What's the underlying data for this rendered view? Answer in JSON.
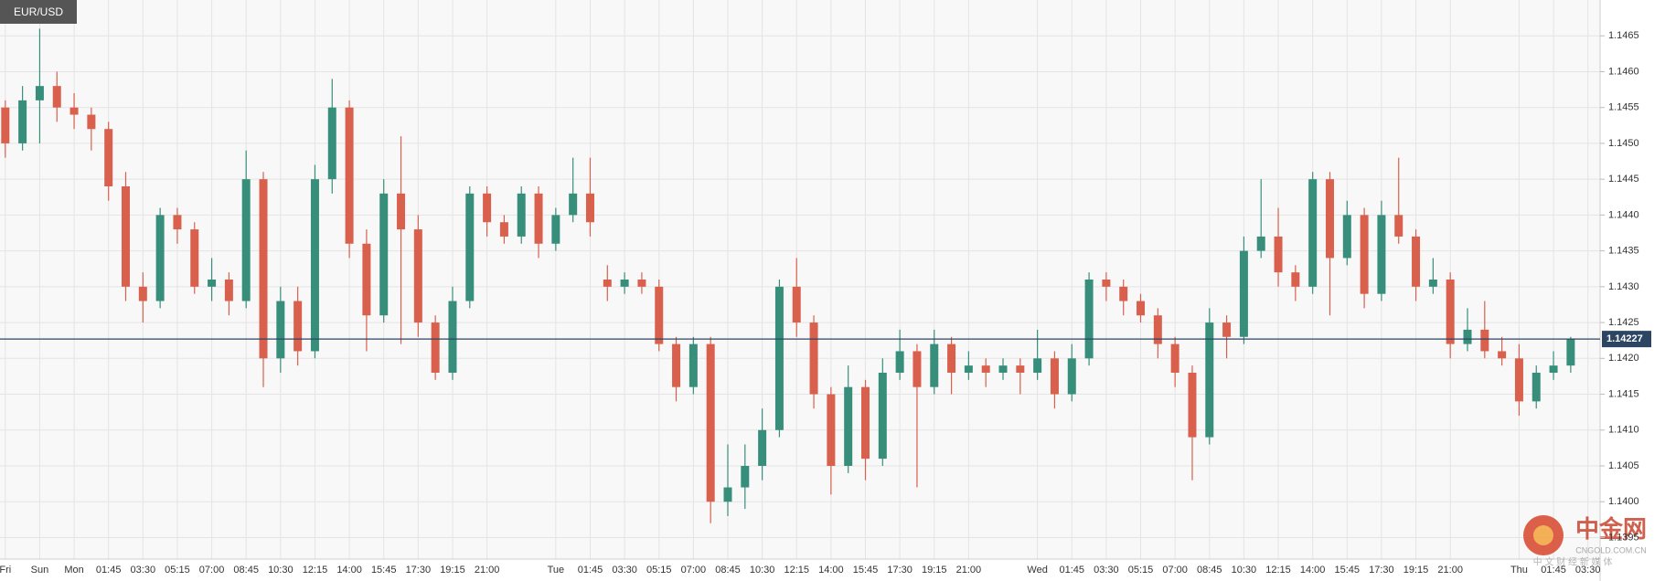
{
  "chart_data": {
    "type": "candlestick",
    "title": "EUR/USD",
    "categories": [
      "Fri",
      null,
      "Sun",
      null,
      "Mon",
      null,
      "01:45",
      null,
      "03:30",
      null,
      "05:15",
      null,
      "07:00",
      null,
      "08:45",
      null,
      "10:30",
      null,
      "12:15",
      null,
      "14:00",
      null,
      "15:45",
      null,
      "17:30",
      null,
      "19:15",
      null,
      "21:00",
      null,
      null,
      null,
      "Tue",
      null,
      "01:45",
      null,
      "03:30",
      null,
      "05:15",
      null,
      "07:00",
      null,
      "08:45",
      null,
      "10:30",
      null,
      "12:15",
      null,
      "14:00",
      null,
      "15:45",
      null,
      "17:30",
      null,
      "19:15",
      null,
      "21:00",
      null,
      null,
      null,
      "Wed",
      null,
      "01:45",
      null,
      "03:30",
      null,
      "05:15",
      null,
      "07:00",
      null,
      "08:45",
      null,
      "10:30",
      null,
      "12:15",
      null,
      "14:00",
      null,
      "15:45",
      null,
      "17:30",
      null,
      "19:15",
      null,
      "21:00",
      null,
      null,
      null,
      "Thu",
      null,
      "01:45",
      null,
      "03:30"
    ],
    "open": [
      1.1455,
      1.145,
      1.1456,
      1.1458,
      1.1455,
      1.1454,
      1.1452,
      1.1444,
      1.143,
      1.1428,
      1.144,
      1.1438,
      1.143,
      1.1431,
      1.1428,
      1.1445,
      1.142,
      1.1428,
      1.1421,
      1.1445,
      1.1455,
      1.1436,
      1.1426,
      1.1443,
      1.1438,
      1.1425,
      1.1418,
      1.1428,
      1.1443,
      1.1439,
      1.1437,
      1.1443,
      1.1436,
      1.144,
      1.1443,
      1.1431,
      1.143,
      1.1431,
      1.143,
      1.1422,
      1.1416,
      1.1422,
      1.14,
      1.1402,
      1.1405,
      1.141,
      1.143,
      1.1425,
      1.1415,
      1.1405,
      1.1416,
      1.1406,
      1.1418,
      1.1421,
      1.1416,
      1.1422,
      1.1418,
      1.1419,
      1.1418,
      1.1419,
      1.1418,
      1.142,
      1.1415,
      1.142,
      1.1431,
      1.143,
      1.1428,
      1.1426,
      1.1422,
      1.1418,
      1.1409,
      1.1425,
      1.1423,
      1.1435,
      1.1437,
      1.1432,
      1.143,
      1.1445,
      1.1434,
      1.144,
      1.1429,
      1.144,
      1.1437,
      1.143,
      1.1431,
      1.1422,
      1.1424,
      1.1421,
      1.142,
      1.1414,
      1.1418,
      1.1419,
      null
    ],
    "high": [
      1.1456,
      1.1458,
      1.1466,
      1.146,
      1.1457,
      1.1455,
      1.1453,
      1.1446,
      1.1432,
      1.1441,
      1.1441,
      1.1439,
      1.1434,
      1.1432,
      1.1449,
      1.1446,
      1.143,
      1.143,
      1.1447,
      1.1459,
      1.1456,
      1.1438,
      1.1445,
      1.1451,
      1.144,
      1.1426,
      1.143,
      1.1444,
      1.1444,
      1.144,
      1.1444,
      1.1444,
      1.1441,
      1.1448,
      1.1448,
      1.1433,
      1.1432,
      1.1432,
      1.1431,
      1.1423,
      1.1423,
      1.1423,
      1.1408,
      1.1408,
      1.1413,
      1.1431,
      1.1434,
      1.1426,
      1.1416,
      1.1419,
      1.1417,
      1.142,
      1.1424,
      1.1422,
      1.1424,
      1.1423,
      1.1421,
      1.142,
      1.142,
      1.142,
      1.1424,
      1.1421,
      1.1422,
      1.1432,
      1.1432,
      1.1431,
      1.1429,
      1.1427,
      1.1423,
      1.1419,
      1.1427,
      1.1426,
      1.1437,
      1.1445,
      1.1441,
      1.1433,
      1.1446,
      1.1446,
      1.1442,
      1.1441,
      1.1442,
      1.1448,
      1.1438,
      1.1434,
      1.1432,
      1.1427,
      1.1428,
      1.1423,
      1.1422,
      1.1419,
      1.1421,
      1.1423,
      null
    ],
    "low": [
      1.1448,
      1.1449,
      1.145,
      1.1453,
      1.1452,
      1.1449,
      1.1442,
      1.1428,
      1.1425,
      1.1427,
      1.1436,
      1.1429,
      1.1428,
      1.1426,
      1.1427,
      1.1416,
      1.1418,
      1.1419,
      1.142,
      1.1443,
      1.1434,
      1.1421,
      1.1425,
      1.1422,
      1.1423,
      1.1417,
      1.1417,
      1.1427,
      1.1437,
      1.1436,
      1.1436,
      1.1434,
      1.1435,
      1.1439,
      1.1437,
      1.1428,
      1.1429,
      1.1429,
      1.1421,
      1.1414,
      1.1415,
      1.1397,
      1.1398,
      1.1399,
      1.1403,
      1.1409,
      1.1423,
      1.1413,
      1.1401,
      1.1404,
      1.1403,
      1.1405,
      1.1417,
      1.1402,
      1.1415,
      1.1415,
      1.1417,
      1.1416,
      1.1417,
      1.1415,
      1.1417,
      1.1413,
      1.1414,
      1.1419,
      1.1428,
      1.1426,
      1.1425,
      1.142,
      1.1416,
      1.1403,
      1.1408,
      1.142,
      1.1422,
      1.1434,
      1.143,
      1.1428,
      1.1429,
      1.1426,
      1.1433,
      1.1427,
      1.1428,
      1.1436,
      1.1428,
      1.1429,
      1.142,
      1.1421,
      1.142,
      1.1419,
      1.1412,
      1.1413,
      1.1417,
      1.1418,
      null
    ],
    "close": [
      1.145,
      1.1456,
      1.1458,
      1.1455,
      1.1454,
      1.1452,
      1.1444,
      1.143,
      1.1428,
      1.144,
      1.1438,
      1.143,
      1.1431,
      1.1428,
      1.1445,
      1.142,
      1.1428,
      1.1421,
      1.1445,
      1.1455,
      1.1436,
      1.1426,
      1.1443,
      1.1438,
      1.1425,
      1.1418,
      1.1428,
      1.1443,
      1.1439,
      1.1437,
      1.1443,
      1.1436,
      1.144,
      1.1443,
      1.1439,
      1.143,
      1.1431,
      1.143,
      1.1422,
      1.1416,
      1.1422,
      1.14,
      1.1402,
      1.1405,
      1.141,
      1.143,
      1.1425,
      1.1415,
      1.1405,
      1.1416,
      1.1406,
      1.1418,
      1.1421,
      1.1416,
      1.1422,
      1.1418,
      1.1419,
      1.1418,
      1.1419,
      1.1418,
      1.142,
      1.1415,
      1.142,
      1.1431,
      1.143,
      1.1428,
      1.1426,
      1.1422,
      1.1418,
      1.1409,
      1.1425,
      1.1423,
      1.1435,
      1.1437,
      1.1432,
      1.143,
      1.1445,
      1.1434,
      1.144,
      1.1429,
      1.144,
      1.1437,
      1.143,
      1.1431,
      1.1422,
      1.1424,
      1.1421,
      1.142,
      1.1414,
      1.1418,
      1.1419,
      1.14227,
      null
    ],
    "up_color": "#378f7b",
    "down_color": "#d9604c",
    "last_price": 1.14227,
    "last_price_color": "#2c4563",
    "ylim": [
      1.1392,
      1.147
    ],
    "yticks": [
      1.1395,
      {
        "value": 1.14,
        "label": "1.1400"
      },
      1.1405,
      {
        "value": 1.141,
        "label": "1.1410"
      },
      1.1415,
      {
        "value": 1.142,
        "label": "1.1420"
      },
      1.1425,
      {
        "value": 1.143,
        "label": "1.1430"
      },
      1.1435,
      {
        "value": 1.144,
        "label": "1.1440"
      },
      1.1445,
      {
        "value": 1.145,
        "label": "1.1450"
      },
      1.1455,
      {
        "value": 1.146,
        "label": "1.1460"
      },
      1.1465
    ],
    "grid": true
  },
  "watermark": {
    "name": "中金网",
    "domain": "CNGOLD.COM.CN",
    "tagline": "中 文 财 经 新 媒 体"
  }
}
